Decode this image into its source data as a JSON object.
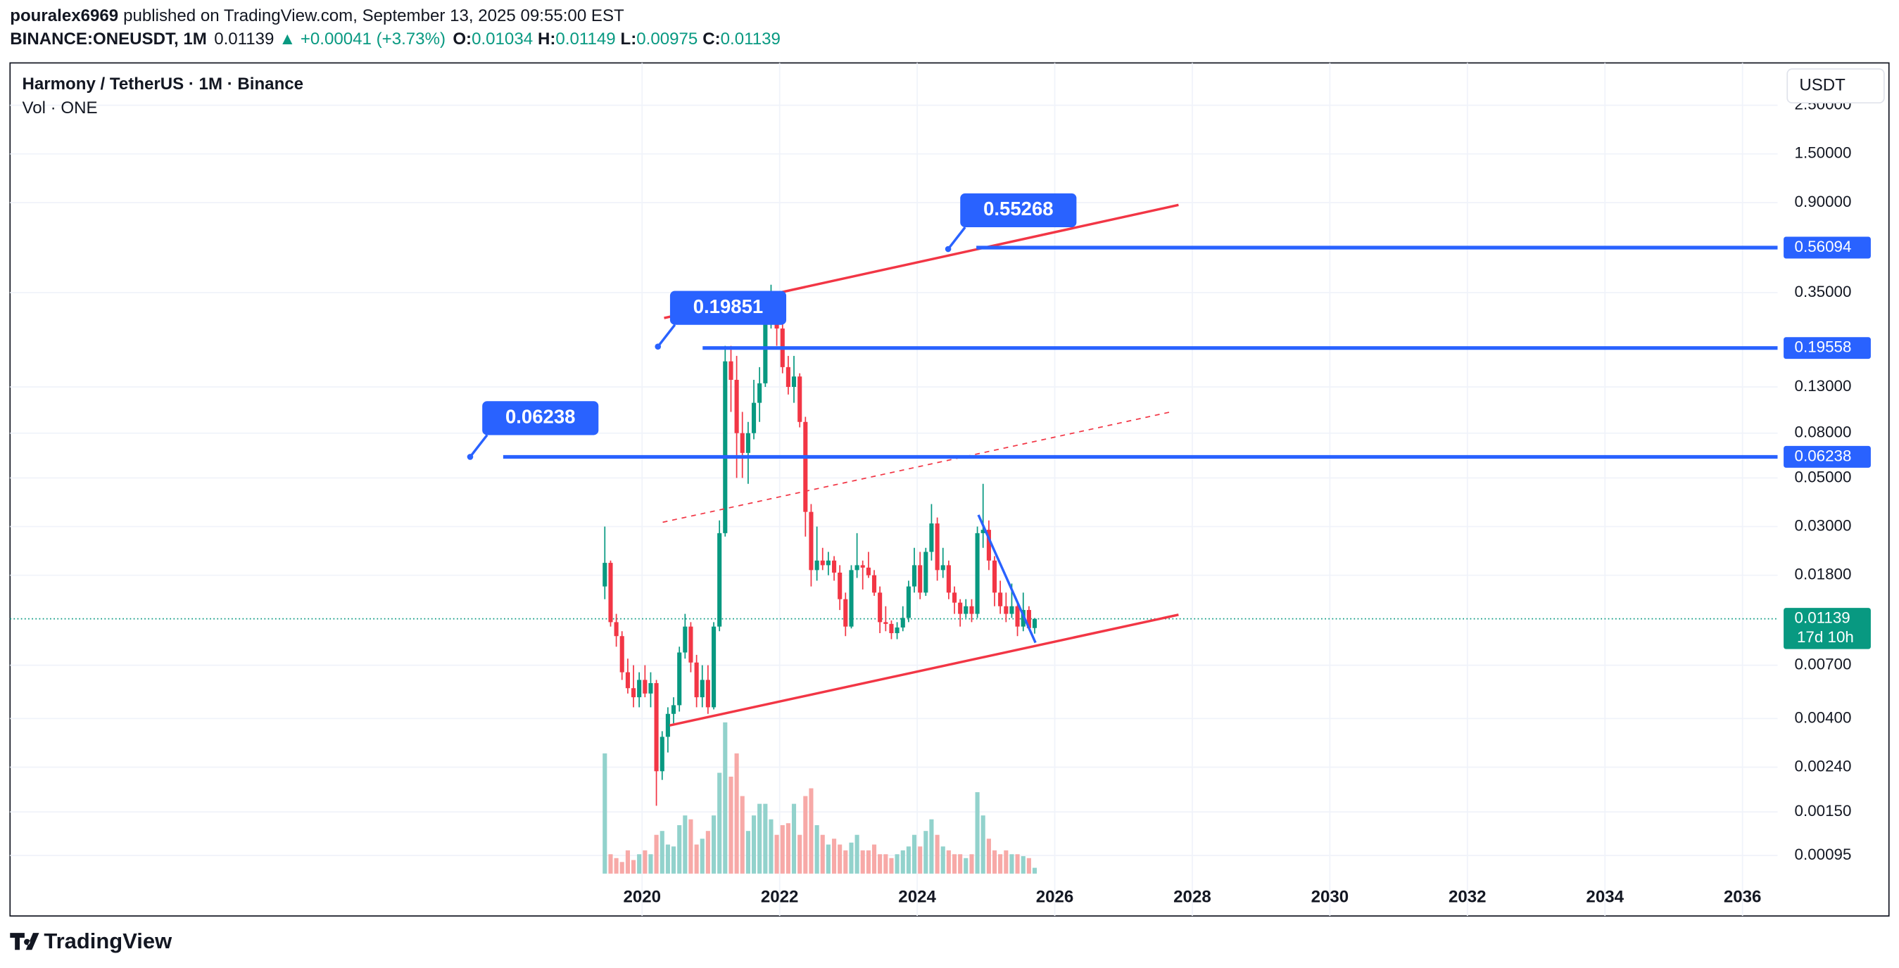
{
  "header": {
    "author": "pouralex6969",
    "published": "published on TradingView.com, September 13, 2025 09:55:00 EST",
    "symbol": "BINANCE:ONEUSDT, 1M",
    "price": 0.01139,
    "change": "▲ +0.00041 (+3.73%)",
    "ohlc": [
      {
        "label": "O:",
        "value": 0.01034
      },
      {
        "label": "H:",
        "value": 0.01149
      },
      {
        "label": "L:",
        "value": 0.00975
      },
      {
        "label": "C:",
        "value": 0.01139
      }
    ]
  },
  "footer": {
    "brand": "TradingView"
  },
  "chart_data": {
    "type": "candlestick",
    "title": "Harmony / TetherUS · 1M · Binance",
    "subtitle": "Vol · ONE",
    "currency_button": "USDT",
    "log_scale": true,
    "grid": true,
    "x": [
      2019.458,
      2019.542,
      2019.625,
      2019.708,
      2019.792,
      2019.875,
      2019.958,
      2020.042,
      2020.125,
      2020.208,
      2020.292,
      2020.375,
      2020.458,
      2020.542,
      2020.625,
      2020.708,
      2020.792,
      2020.875,
      2020.958,
      2021.042,
      2021.125,
      2021.208,
      2021.292,
      2021.375,
      2021.458,
      2021.542,
      2021.625,
      2021.708,
      2021.792,
      2021.875,
      2021.958,
      2022.042,
      2022.125,
      2022.208,
      2022.292,
      2022.375,
      2022.458,
      2022.542,
      2022.625,
      2022.708,
      2022.792,
      2022.875,
      2022.958,
      2023.042,
      2023.125,
      2023.208,
      2023.292,
      2023.375,
      2023.458,
      2023.542,
      2023.625,
      2023.708,
      2023.792,
      2023.875,
      2023.958,
      2024.042,
      2024.125,
      2024.208,
      2024.292,
      2024.375,
      2024.458,
      2024.542,
      2024.625,
      2024.708,
      2024.792,
      2024.875,
      2024.958,
      2025.042,
      2025.125,
      2025.208,
      2025.292,
      2025.375,
      2025.458,
      2025.542,
      2025.625,
      2025.708
    ],
    "open": [
      0.016,
      0.0205,
      0.011,
      0.0095,
      0.0065,
      0.0055,
      0.005,
      0.006,
      0.0052,
      0.0058,
      0.0023,
      0.0033,
      0.0042,
      0.0046,
      0.008,
      0.0105,
      0.0072,
      0.005,
      0.006,
      0.0045,
      0.0105,
      0.028,
      0.17,
      0.14,
      0.08,
      0.065,
      0.08,
      0.11,
      0.135,
      0.28,
      0.29,
      0.24,
      0.16,
      0.13,
      0.145,
      0.09,
      0.035,
      0.019,
      0.021,
      0.02,
      0.021,
      0.0185,
      0.014,
      0.0105,
      0.019,
      0.02,
      0.0195,
      0.018,
      0.015,
      0.011,
      0.0108,
      0.0098,
      0.0104,
      0.0115,
      0.016,
      0.02,
      0.015,
      0.023,
      0.031,
      0.019,
      0.02,
      0.015,
      0.0135,
      0.012,
      0.013,
      0.012,
      0.028,
      0.029,
      0.021,
      0.015,
      0.013,
      0.012,
      0.013,
      0.0105,
      0.0125,
      0.01034
    ],
    "high": [
      0.03,
      0.021,
      0.012,
      0.01,
      0.0075,
      0.007,
      0.0065,
      0.007,
      0.0065,
      0.006,
      0.0035,
      0.0045,
      0.005,
      0.0085,
      0.012,
      0.011,
      0.0078,
      0.007,
      0.007,
      0.011,
      0.032,
      0.2,
      0.2,
      0.18,
      0.1,
      0.09,
      0.14,
      0.16,
      0.3,
      0.38,
      0.35,
      0.28,
      0.18,
      0.18,
      0.15,
      0.095,
      0.038,
      0.03,
      0.024,
      0.023,
      0.022,
      0.02,
      0.015,
      0.02,
      0.028,
      0.021,
      0.023,
      0.019,
      0.016,
      0.013,
      0.0112,
      0.011,
      0.013,
      0.017,
      0.024,
      0.023,
      0.024,
      0.038,
      0.033,
      0.024,
      0.021,
      0.016,
      0.014,
      0.014,
      0.014,
      0.03,
      0.047,
      0.032,
      0.022,
      0.017,
      0.015,
      0.0165,
      0.0135,
      0.015,
      0.013,
      0.01149
    ],
    "low": [
      0.014,
      0.0105,
      0.0085,
      0.006,
      0.0052,
      0.0045,
      0.0045,
      0.005,
      0.0045,
      0.0016,
      0.0021,
      0.0028,
      0.0038,
      0.0043,
      0.0075,
      0.0065,
      0.0045,
      0.0045,
      0.0042,
      0.0044,
      0.01,
      0.027,
      0.1,
      0.05,
      0.05,
      0.047,
      0.075,
      0.09,
      0.13,
      0.24,
      0.2,
      0.15,
      0.12,
      0.11,
      0.085,
      0.027,
      0.016,
      0.017,
      0.019,
      0.018,
      0.017,
      0.0125,
      0.0095,
      0.0103,
      0.0175,
      0.0155,
      0.0175,
      0.0145,
      0.0098,
      0.01,
      0.0092,
      0.0092,
      0.01,
      0.011,
      0.015,
      0.014,
      0.0145,
      0.021,
      0.017,
      0.0175,
      0.014,
      0.012,
      0.0105,
      0.0115,
      0.011,
      0.0115,
      0.024,
      0.019,
      0.013,
      0.012,
      0.011,
      0.0115,
      0.0095,
      0.01,
      0.0102,
      0.00975
    ],
    "close": [
      0.0205,
      0.011,
      0.0095,
      0.0065,
      0.0055,
      0.005,
      0.006,
      0.0052,
      0.0058,
      0.0023,
      0.0033,
      0.0042,
      0.0046,
      0.008,
      0.0105,
      0.0072,
      0.005,
      0.006,
      0.0045,
      0.0105,
      0.028,
      0.17,
      0.14,
      0.08,
      0.065,
      0.08,
      0.11,
      0.135,
      0.28,
      0.29,
      0.24,
      0.16,
      0.13,
      0.145,
      0.09,
      0.035,
      0.019,
      0.021,
      0.02,
      0.021,
      0.0185,
      0.014,
      0.0105,
      0.019,
      0.02,
      0.0195,
      0.018,
      0.015,
      0.011,
      0.0108,
      0.0098,
      0.0104,
      0.0115,
      0.016,
      0.02,
      0.015,
      0.023,
      0.031,
      0.019,
      0.02,
      0.015,
      0.0135,
      0.012,
      0.013,
      0.012,
      0.028,
      0.029,
      0.021,
      0.015,
      0.013,
      0.012,
      0.013,
      0.0105,
      0.0125,
      0.01034,
      0.01139
    ],
    "volume": [
      62,
      10,
      8,
      6,
      12,
      7,
      10,
      12,
      10,
      20,
      22,
      15,
      14,
      25,
      30,
      28,
      15,
      18,
      22,
      30,
      52,
      78,
      50,
      62,
      40,
      22,
      30,
      36,
      36,
      28,
      20,
      25,
      26,
      36,
      20,
      40,
      44,
      25,
      20,
      15,
      18,
      15,
      12,
      16,
      20,
      12,
      12,
      15,
      10,
      10,
      8,
      10,
      12,
      14,
      20,
      14,
      22,
      28,
      20,
      14,
      12,
      10,
      10,
      8,
      10,
      42,
      30,
      18,
      12,
      10,
      12,
      10,
      10,
      9,
      8,
      3
    ],
    "up_color": "#089981",
    "down_color": "#f23645",
    "volume_up_color": "#92d2cc",
    "volume_down_color": "#f7a9a7",
    "xlim": [
      2010.81,
      2036.51
    ],
    "xticks": [
      2020,
      2022,
      2024,
      2026,
      2028,
      2030,
      2032,
      2034,
      2036
    ],
    "ylim": [
      0.000785,
      3.9
    ],
    "yticks": [
      {
        "value": 2.5,
        "label": "2.50000"
      },
      {
        "value": 1.5,
        "label": "1.50000"
      },
      {
        "value": 0.9,
        "label": "0.90000"
      },
      {
        "value": 0.35,
        "label": "0.35000"
      },
      {
        "value": 0.13,
        "label": "0.13000"
      },
      {
        "value": 0.08,
        "label": "0.08000"
      },
      {
        "value": 0.05,
        "label": "0.05000"
      },
      {
        "value": 0.03,
        "label": "0.03000"
      },
      {
        "value": 0.018,
        "label": "0.01800"
      },
      {
        "value": 0.007,
        "label": "0.00700"
      },
      {
        "value": 0.004,
        "label": "0.00400"
      },
      {
        "value": 0.0024,
        "label": "0.00240"
      },
      {
        "value": 0.0015,
        "label": "0.00150"
      },
      {
        "value": 0.00095,
        "label": "0.00095"
      }
    ],
    "last_price": {
      "value": 0.01139,
      "countdown": "17d 10h",
      "color": "#089981"
    },
    "trend_lines": [
      {
        "color": "#f23645",
        "dashed": false,
        "x": [
          2020.32,
          2027.8
        ],
        "y": [
          0.268,
          0.878
        ]
      },
      {
        "color": "#f23645",
        "dashed": true,
        "x": [
          2020.3,
          2027.69
        ],
        "y": [
          0.0314,
          0.1
        ]
      },
      {
        "color": "#f23645",
        "dashed": false,
        "x": [
          2020.4,
          2027.8
        ],
        "y": [
          0.00372,
          0.01189
        ]
      },
      {
        "color": "#2962ff",
        "dashed": false,
        "x": [
          2024.89,
          2025.72
        ],
        "y": [
          0.0339,
          0.00887
        ]
      }
    ],
    "levels": [
      {
        "value": 0.56094,
        "x_start": 2024.86,
        "color": "#2962ff"
      },
      {
        "value": 0.19558,
        "x_start": 2020.88,
        "color": "#2962ff"
      },
      {
        "value": 0.06238,
        "x_start": 2017.98,
        "color": "#2962ff"
      }
    ],
    "callouts": [
      {
        "value": 0.55268,
        "x": 2024.45,
        "color": "#2962ff"
      },
      {
        "value": 0.19851,
        "x": 2020.23,
        "color": "#2962ff"
      },
      {
        "value": 0.06238,
        "x": 2017.5,
        "color": "#2962ff"
      }
    ]
  }
}
